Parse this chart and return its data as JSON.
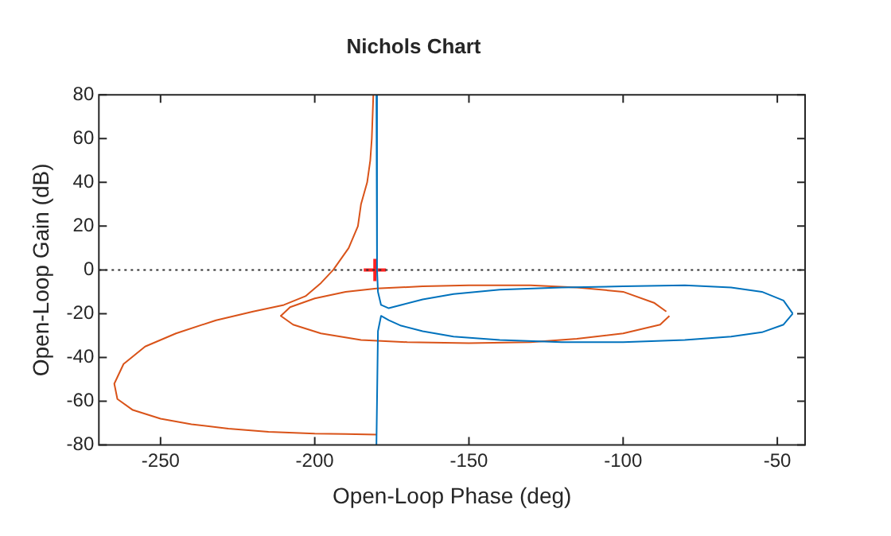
{
  "chart_data": {
    "type": "line",
    "title": "Nichols Chart",
    "xlabel": "Open-Loop Phase (deg)",
    "ylabel": "Open-Loop Gain (dB)",
    "xlim": [
      -270,
      -41
    ],
    "ylim": [
      -80,
      80
    ],
    "xticks": [
      -250,
      -200,
      -150,
      -100,
      -50
    ],
    "yticks": [
      -80,
      -60,
      -40,
      -20,
      0,
      20,
      40,
      60,
      80
    ],
    "grid": false,
    "legend": false,
    "marker": "none",
    "line_style": "solid",
    "series": [
      {
        "color": "#0072bd",
        "x": [
          -180,
          -179.8,
          -179.5,
          -178.5,
          -176,
          -172,
          -165,
          -155,
          -140,
          -120,
          -100,
          -80,
          -65,
          -55,
          -48,
          -45
        ],
        "values": [
          80,
          0,
          -10,
          -16,
          -17.5,
          -16,
          -13.5,
          -11,
          -9,
          -8,
          -7.5,
          -7,
          -8,
          -10,
          -14,
          -20
        ]
      },
      {
        "color": "#0072bd",
        "x": [
          -45,
          -48,
          -55,
          -65,
          -80,
          -100,
          -120,
          -140,
          -155,
          -165,
          -172,
          -176,
          -178.5,
          -179.5,
          -180
        ],
        "values": [
          -20,
          -25,
          -28.5,
          -30.5,
          -32,
          -33,
          -33,
          -32,
          -30.5,
          -28,
          -25.5,
          -23,
          -21,
          -28,
          -80
        ]
      },
      {
        "color": "#d95319",
        "x": [
          -181,
          -181.5,
          -182,
          -183,
          -185,
          -186,
          -189,
          -194,
          -198,
          -203,
          -210,
          -220,
          -232,
          -245,
          -255,
          -262,
          -265,
          -264,
          -259,
          -250,
          -240,
          -228,
          -215,
          -200,
          -190,
          -180
        ],
        "values": [
          80,
          60,
          50,
          40,
          30,
          20,
          10,
          0,
          -6,
          -12,
          -16,
          -19,
          -23,
          -29,
          -35,
          -43,
          -52,
          -59,
          -64,
          -68,
          -70.5,
          -72.5,
          -74,
          -74.8,
          -75,
          -75.2
        ]
      },
      {
        "color": "#d95319",
        "x": [
          -85,
          -88,
          -100,
          -115,
          -130,
          -150,
          -170,
          -185,
          -198,
          -207,
          -211,
          -208,
          -200,
          -190,
          -180,
          -165,
          -150,
          -130,
          -115,
          -100,
          -90,
          -86
        ],
        "values": [
          -21,
          -25,
          -29,
          -31.5,
          -33,
          -33.5,
          -33,
          -32,
          -29,
          -25,
          -21,
          -17,
          -13,
          -10,
          -8.5,
          -7.5,
          -7,
          -7,
          -8,
          -10,
          -15,
          -19
        ]
      },
      {
        "type": "scatter",
        "color": "#ff2020",
        "marker": "cross",
        "x": [
          -180.5
        ],
        "values": [
          0
        ]
      }
    ],
    "ref_lines": [
      {
        "axis": "y",
        "value": 0,
        "color": "#333333",
        "line_style": "dotted"
      }
    ]
  }
}
